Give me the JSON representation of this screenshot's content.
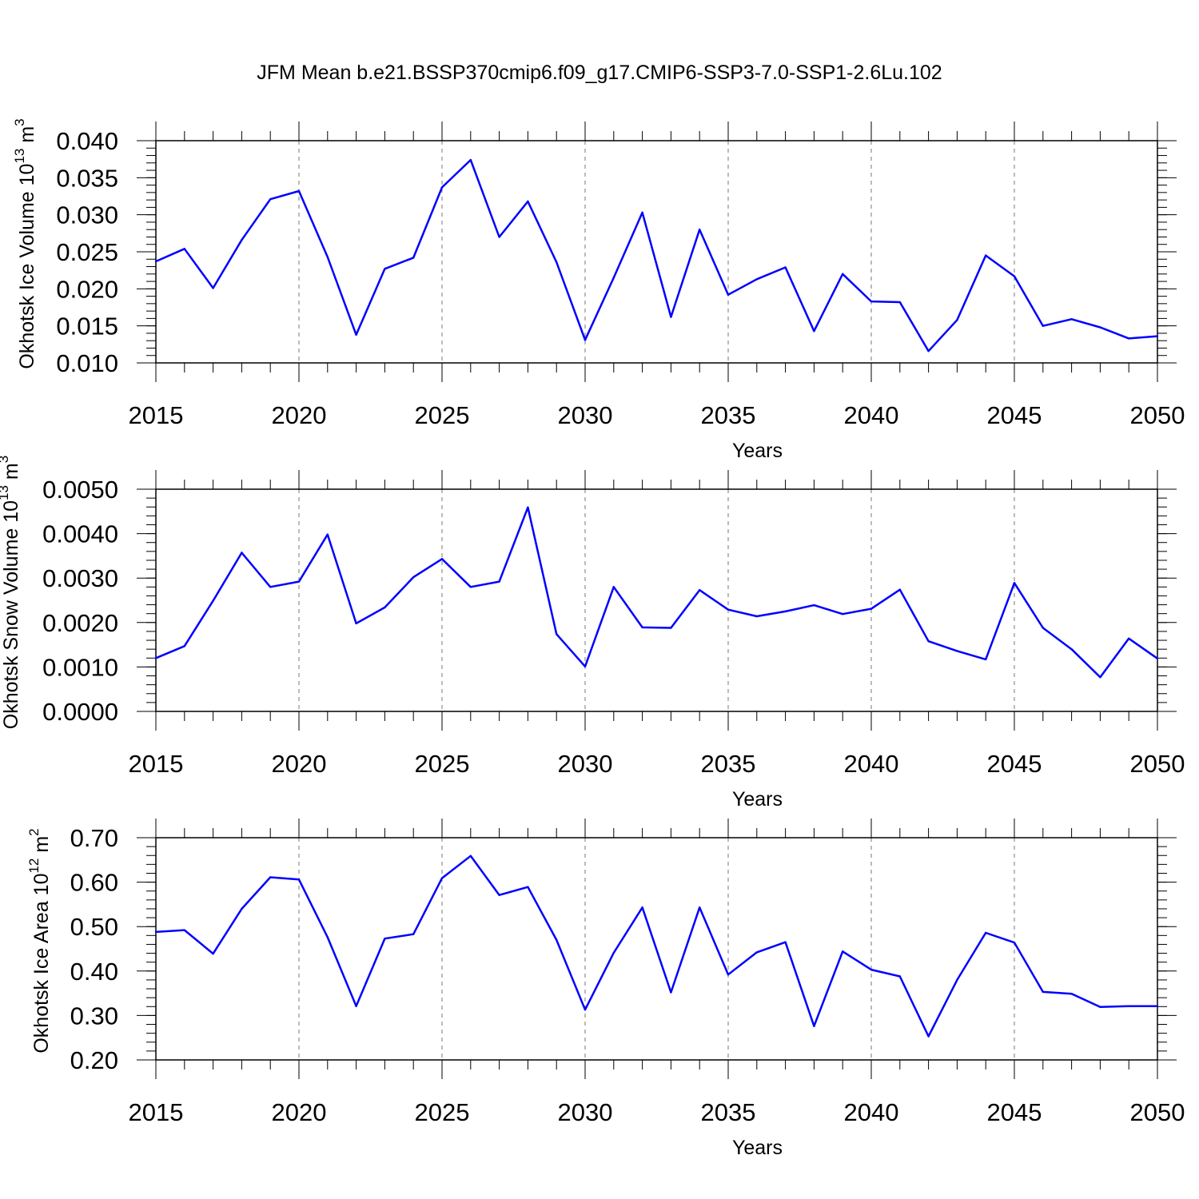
{
  "title": "JFM Mean b.e21.BSSP370cmip6.f09_g17.CMIP6-SSP3-7.0-SSP1-2.6Lu.102",
  "colors": {
    "line": "#0000ff",
    "axis": "#000000",
    "grid": "#777777",
    "background": "#ffffff"
  },
  "chart_data": [
    {
      "type": "line",
      "xlabel": "Years",
      "ylabel_main": "Okhotsk Ice Volume 10",
      "ylabel_exp": "13",
      "ylabel_unit": " m",
      "ylabel_unit_exp": "3",
      "xlim": [
        2015,
        2050
      ],
      "ylim": [
        0.01,
        0.04
      ],
      "x_ticks": [
        2015,
        2020,
        2025,
        2030,
        2035,
        2040,
        2045,
        2050
      ],
      "x_tick_labels": [
        "2015",
        "2020",
        "2025",
        "2030",
        "2035",
        "2040",
        "2045",
        "2050"
      ],
      "y_ticks": [
        0.01,
        0.015,
        0.02,
        0.025,
        0.03,
        0.035,
        0.04
      ],
      "y_tick_labels": [
        "0.010",
        "0.015",
        "0.020",
        "0.025",
        "0.030",
        "0.035",
        "0.040"
      ],
      "y_minor_step": 0.001,
      "grid": "vertical dashed at major x ticks",
      "x": [
        2015,
        2016,
        2017,
        2018,
        2019,
        2020,
        2021,
        2022,
        2023,
        2024,
        2025,
        2026,
        2027,
        2028,
        2029,
        2030,
        2031,
        2032,
        2033,
        2034,
        2035,
        2036,
        2037,
        2038,
        2039,
        2040,
        2041,
        2042,
        2043,
        2044,
        2045,
        2046,
        2047,
        2048,
        2049,
        2050
      ],
      "values": [
        0.0237,
        0.0254,
        0.0201,
        0.0266,
        0.0321,
        0.0332,
        0.0243,
        0.0138,
        0.0227,
        0.0242,
        0.0337,
        0.0374,
        0.027,
        0.0318,
        0.0236,
        0.0131,
        0.0215,
        0.0303,
        0.0162,
        0.028,
        0.0192,
        0.0213,
        0.0229,
        0.0143,
        0.022,
        0.0183,
        0.0182,
        0.0116,
        0.0158,
        0.0245,
        0.0217,
        0.015,
        0.0159,
        0.0148,
        0.0133,
        0.0136
      ]
    },
    {
      "type": "line",
      "xlabel": "Years",
      "ylabel_main": "Okhotsk Snow Volume 10",
      "ylabel_exp": "13",
      "ylabel_unit": " m",
      "ylabel_unit_exp": "3",
      "xlim": [
        2015,
        2050
      ],
      "ylim": [
        0.0,
        0.005
      ],
      "x_ticks": [
        2015,
        2020,
        2025,
        2030,
        2035,
        2040,
        2045,
        2050
      ],
      "x_tick_labels": [
        "2015",
        "2020",
        "2025",
        "2030",
        "2035",
        "2040",
        "2045",
        "2050"
      ],
      "y_ticks": [
        0.0,
        0.001,
        0.002,
        0.003,
        0.004,
        0.005
      ],
      "y_tick_labels": [
        "0.0000",
        "0.0010",
        "0.0020",
        "0.0030",
        "0.0040",
        "0.0050"
      ],
      "y_minor_step": 0.0002,
      "grid": "vertical dashed at major x ticks",
      "x": [
        2015,
        2016,
        2017,
        2018,
        2019,
        2020,
        2021,
        2022,
        2023,
        2024,
        2025,
        2026,
        2027,
        2028,
        2029,
        2030,
        2031,
        2032,
        2033,
        2034,
        2035,
        2036,
        2037,
        2038,
        2039,
        2040,
        2041,
        2042,
        2043,
        2044,
        2045,
        2046,
        2047,
        2048,
        2049,
        2050
      ],
      "values": [
        0.0012,
        0.00147,
        0.00249,
        0.00357,
        0.0028,
        0.00292,
        0.00398,
        0.00198,
        0.00234,
        0.00302,
        0.00343,
        0.0028,
        0.00292,
        0.00459,
        0.00174,
        0.00101,
        0.0028,
        0.00189,
        0.00188,
        0.00273,
        0.00229,
        0.00214,
        0.00225,
        0.00239,
        0.00219,
        0.00231,
        0.00274,
        0.00158,
        0.00136,
        0.00117,
        0.00289,
        0.00188,
        0.0014,
        0.00077,
        0.00164,
        0.00119
      ]
    },
    {
      "type": "line",
      "xlabel": "Years",
      "ylabel_main": "Okhotsk Ice Area 10",
      "ylabel_exp": "12",
      "ylabel_unit": " m",
      "ylabel_unit_exp": "2",
      "xlim": [
        2015,
        2050
      ],
      "ylim": [
        0.2,
        0.7
      ],
      "x_ticks": [
        2015,
        2020,
        2025,
        2030,
        2035,
        2040,
        2045,
        2050
      ],
      "x_tick_labels": [
        "2015",
        "2020",
        "2025",
        "2030",
        "2035",
        "2040",
        "2045",
        "2050"
      ],
      "y_ticks": [
        0.2,
        0.3,
        0.4,
        0.5,
        0.6,
        0.7
      ],
      "y_tick_labels": [
        "0.20",
        "0.30",
        "0.40",
        "0.50",
        "0.60",
        "0.70"
      ],
      "y_minor_step": 0.02,
      "grid": "vertical dashed at major x ticks",
      "x": [
        2015,
        2016,
        2017,
        2018,
        2019,
        2020,
        2021,
        2022,
        2023,
        2024,
        2025,
        2026,
        2027,
        2028,
        2029,
        2030,
        2031,
        2032,
        2033,
        2034,
        2035,
        2036,
        2037,
        2038,
        2039,
        2040,
        2041,
        2042,
        2043,
        2044,
        2045,
        2046,
        2047,
        2048,
        2049,
        2050
      ],
      "values": [
        0.488,
        0.492,
        0.439,
        0.54,
        0.611,
        0.606,
        0.476,
        0.321,
        0.473,
        0.483,
        0.609,
        0.659,
        0.571,
        0.589,
        0.47,
        0.313,
        0.441,
        0.543,
        0.352,
        0.543,
        0.392,
        0.442,
        0.465,
        0.276,
        0.444,
        0.403,
        0.388,
        0.253,
        0.38,
        0.486,
        0.464,
        0.353,
        0.349,
        0.319,
        0.321,
        0.321
      ]
    }
  ]
}
